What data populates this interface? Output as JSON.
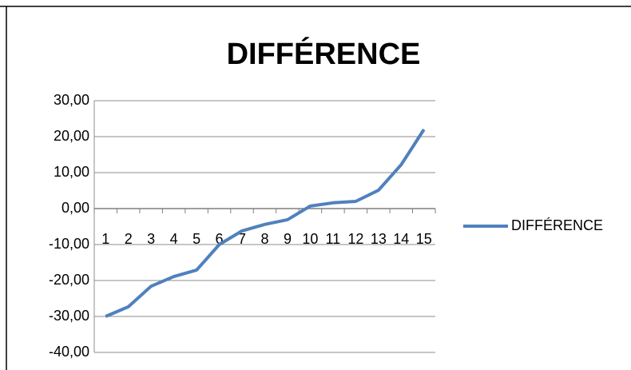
{
  "chart_data": {
    "type": "line",
    "title": "DIFFÉRENCE",
    "categories": [
      "1",
      "2",
      "3",
      "4",
      "5",
      "6",
      "7",
      "8",
      "9",
      "10",
      "11",
      "12",
      "13",
      "14",
      "15"
    ],
    "series": [
      {
        "name": "DIFFÉRENCE",
        "color": "#4f81bd",
        "values": [
          -30,
          -27.3,
          -21.6,
          -18.9,
          -17.1,
          -10,
          -6.2,
          -4.4,
          -3.1,
          0.7,
          1.6,
          2,
          5.1,
          12.2,
          22
        ]
      }
    ],
    "ylim": [
      -40,
      30
    ],
    "yticks": [
      {
        "value": -40,
        "label": "-40,00"
      },
      {
        "value": -30,
        "label": "-30,00"
      },
      {
        "value": -20,
        "label": "-20,00"
      },
      {
        "value": -10,
        "label": "-10,00"
      },
      {
        "value": 0,
        "label": "0,00"
      },
      {
        "value": 10,
        "label": "10,00"
      },
      {
        "value": 20,
        "label": "20,00"
      },
      {
        "value": 30,
        "label": "30,00"
      }
    ],
    "grid": true,
    "legend": "right"
  }
}
